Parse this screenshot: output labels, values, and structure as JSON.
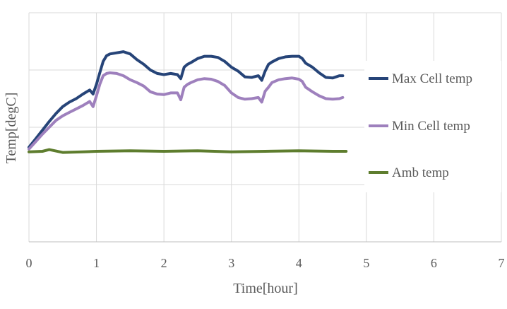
{
  "chart_data": {
    "type": "line",
    "title": "",
    "xlabel": "Time[hour]",
    "ylabel": "Temp[degC]",
    "xlim": [
      0,
      7
    ],
    "ylim": [
      0,
      4
    ],
    "x_ticks": [
      "0",
      "1",
      "2",
      "3",
      "4",
      "5",
      "6",
      "7"
    ],
    "y_ticks_labeled": false,
    "grid": true,
    "legend_position": "right",
    "series": [
      {
        "name": "Max Cell temp",
        "color": "#264478",
        "x": [
          0,
          0.1,
          0.2,
          0.3,
          0.4,
          0.5,
          0.6,
          0.7,
          0.8,
          0.9,
          0.95,
          1.0,
          1.05,
          1.1,
          1.15,
          1.2,
          1.3,
          1.4,
          1.5,
          1.6,
          1.7,
          1.8,
          1.9,
          2.0,
          2.1,
          2.2,
          2.25,
          2.3,
          2.35,
          2.4,
          2.5,
          2.6,
          2.7,
          2.8,
          2.9,
          3.0,
          3.1,
          3.2,
          3.3,
          3.4,
          3.45,
          3.5,
          3.55,
          3.6,
          3.7,
          3.8,
          3.9,
          4.0,
          4.05,
          4.1,
          4.2,
          4.3,
          4.4,
          4.5,
          4.6,
          4.65
        ],
        "values": [
          1.65,
          1.8,
          1.95,
          2.1,
          2.24,
          2.36,
          2.44,
          2.5,
          2.58,
          2.65,
          2.58,
          2.75,
          2.95,
          3.15,
          3.25,
          3.28,
          3.3,
          3.32,
          3.28,
          3.18,
          3.1,
          3.0,
          2.94,
          2.92,
          2.94,
          2.92,
          2.85,
          3.05,
          3.1,
          3.13,
          3.2,
          3.24,
          3.24,
          3.22,
          3.15,
          3.05,
          2.98,
          2.88,
          2.87,
          2.9,
          2.82,
          2.98,
          3.1,
          3.14,
          3.2,
          3.23,
          3.24,
          3.24,
          3.2,
          3.12,
          3.05,
          2.95,
          2.87,
          2.86,
          2.9,
          2.9
        ]
      },
      {
        "name": "Min Cell temp",
        "color": "#9E80BD",
        "x": [
          0,
          0.1,
          0.2,
          0.3,
          0.4,
          0.5,
          0.6,
          0.7,
          0.8,
          0.9,
          0.95,
          1.0,
          1.05,
          1.1,
          1.15,
          1.2,
          1.3,
          1.4,
          1.5,
          1.6,
          1.7,
          1.8,
          1.9,
          2.0,
          2.1,
          2.2,
          2.25,
          2.3,
          2.35,
          2.4,
          2.5,
          2.6,
          2.7,
          2.8,
          2.9,
          3.0,
          3.1,
          3.2,
          3.3,
          3.4,
          3.45,
          3.5,
          3.55,
          3.6,
          3.7,
          3.8,
          3.9,
          4.0,
          4.05,
          4.1,
          4.2,
          4.3,
          4.4,
          4.5,
          4.6,
          4.65
        ],
        "values": [
          1.62,
          1.75,
          1.88,
          2.0,
          2.12,
          2.2,
          2.26,
          2.32,
          2.38,
          2.45,
          2.36,
          2.55,
          2.75,
          2.9,
          2.94,
          2.95,
          2.94,
          2.9,
          2.83,
          2.78,
          2.72,
          2.62,
          2.58,
          2.57,
          2.6,
          2.6,
          2.48,
          2.7,
          2.75,
          2.78,
          2.83,
          2.85,
          2.84,
          2.8,
          2.73,
          2.6,
          2.52,
          2.49,
          2.5,
          2.52,
          2.44,
          2.63,
          2.7,
          2.78,
          2.83,
          2.85,
          2.86,
          2.84,
          2.8,
          2.7,
          2.62,
          2.55,
          2.5,
          2.49,
          2.5,
          2.52
        ]
      },
      {
        "name": "Amb temp",
        "color": "#5E7D2E",
        "x": [
          0,
          0.2,
          0.3,
          0.5,
          0.8,
          1.0,
          1.5,
          2.0,
          2.5,
          3.0,
          3.5,
          4.0,
          4.5,
          4.7
        ],
        "values": [
          1.57,
          1.58,
          1.61,
          1.56,
          1.57,
          1.58,
          1.59,
          1.58,
          1.59,
          1.57,
          1.58,
          1.59,
          1.58,
          1.58
        ]
      }
    ]
  }
}
